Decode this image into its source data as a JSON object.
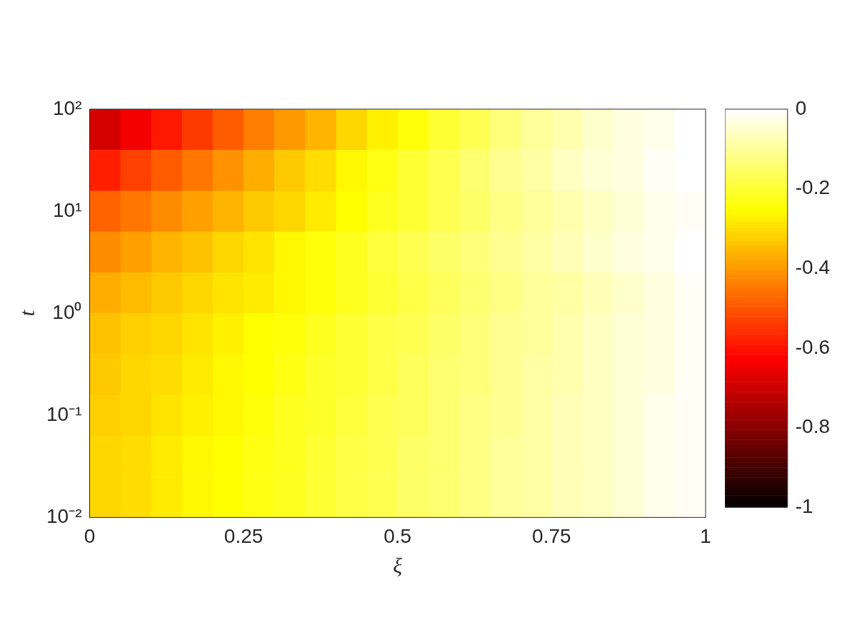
{
  "chart_data": {
    "type": "heatmap",
    "xlabel": "ξ",
    "ylabel": "t",
    "xlim": [
      0,
      1
    ],
    "xticks": [
      0,
      0.25,
      0.5,
      0.75,
      1
    ],
    "ylim": [
      0.01,
      100
    ],
    "yticks": [
      {
        "value": 0.01,
        "label": "10⁻²"
      },
      {
        "value": 0.1,
        "label": "10⁻¹"
      },
      {
        "value": 1,
        "label": "10⁰"
      },
      {
        "value": 10,
        "label": "10¹"
      },
      {
        "value": 100,
        "label": "10²"
      }
    ],
    "log": "y",
    "clim": [
      -1,
      0
    ],
    "cticks": [
      -1,
      -0.8,
      -0.6,
      -0.4,
      -0.2,
      0
    ],
    "cells": [
      [
        -0.69,
        -0.64,
        -0.59,
        -0.54,
        -0.49,
        -0.44,
        -0.4,
        -0.36,
        -0.31,
        -0.27,
        -0.24,
        -0.2,
        -0.17,
        -0.13,
        -0.1,
        -0.08,
        -0.05,
        -0.03,
        -0.02,
        0
      ],
      [
        -0.58,
        -0.53,
        -0.49,
        -0.45,
        -0.41,
        -0.37,
        -0.33,
        -0.3,
        -0.26,
        -0.23,
        -0.2,
        -0.17,
        -0.14,
        -0.11,
        -0.09,
        -0.06,
        -0.04,
        -0.03,
        -0.01,
        0
      ],
      [
        -0.48,
        -0.45,
        -0.42,
        -0.39,
        -0.36,
        -0.33,
        -0.31,
        -0.28,
        -0.25,
        -0.22,
        -0.2,
        -0.17,
        -0.15,
        -0.12,
        -0.1,
        -0.08,
        -0.06,
        -0.04,
        -0.02,
        -0.01
      ],
      [
        -0.42,
        -0.39,
        -0.36,
        -0.34,
        -0.31,
        -0.29,
        -0.26,
        -0.24,
        -0.22,
        -0.19,
        -0.17,
        -0.15,
        -0.13,
        -0.11,
        -0.09,
        -0.07,
        -0.05,
        -0.03,
        -0.02,
        0
      ],
      [
        -0.37,
        -0.35,
        -0.33,
        -0.31,
        -0.29,
        -0.28,
        -0.26,
        -0.24,
        -0.22,
        -0.2,
        -0.18,
        -0.16,
        -0.14,
        -0.12,
        -0.1,
        -0.09,
        -0.07,
        -0.05,
        -0.03,
        -0.01
      ],
      [
        -0.34,
        -0.32,
        -0.31,
        -0.29,
        -0.27,
        -0.25,
        -0.24,
        -0.22,
        -0.2,
        -0.18,
        -0.17,
        -0.15,
        -0.13,
        -0.11,
        -0.1,
        -0.08,
        -0.06,
        -0.04,
        -0.03,
        -0.01
      ],
      [
        -0.33,
        -0.31,
        -0.3,
        -0.28,
        -0.26,
        -0.25,
        -0.23,
        -0.21,
        -0.2,
        -0.18,
        -0.16,
        -0.14,
        -0.13,
        -0.11,
        -0.09,
        -0.08,
        -0.06,
        -0.04,
        -0.03,
        -0.01
      ],
      [
        -0.32,
        -0.31,
        -0.29,
        -0.27,
        -0.26,
        -0.24,
        -0.22,
        -0.21,
        -0.19,
        -0.17,
        -0.16,
        -0.14,
        -0.12,
        -0.11,
        -0.09,
        -0.07,
        -0.06,
        -0.04,
        -0.02,
        -0.01
      ],
      [
        -0.31,
        -0.3,
        -0.28,
        -0.26,
        -0.25,
        -0.23,
        -0.22,
        -0.2,
        -0.18,
        -0.17,
        -0.15,
        -0.14,
        -0.12,
        -0.1,
        -0.09,
        -0.07,
        -0.06,
        -0.04,
        -0.02,
        -0.01
      ],
      [
        -0.31,
        -0.3,
        -0.28,
        -0.26,
        -0.25,
        -0.23,
        -0.22,
        -0.2,
        -0.18,
        -0.17,
        -0.15,
        -0.14,
        -0.12,
        -0.1,
        -0.09,
        -0.07,
        -0.06,
        -0.04,
        -0.02,
        -0.01
      ]
    ]
  }
}
